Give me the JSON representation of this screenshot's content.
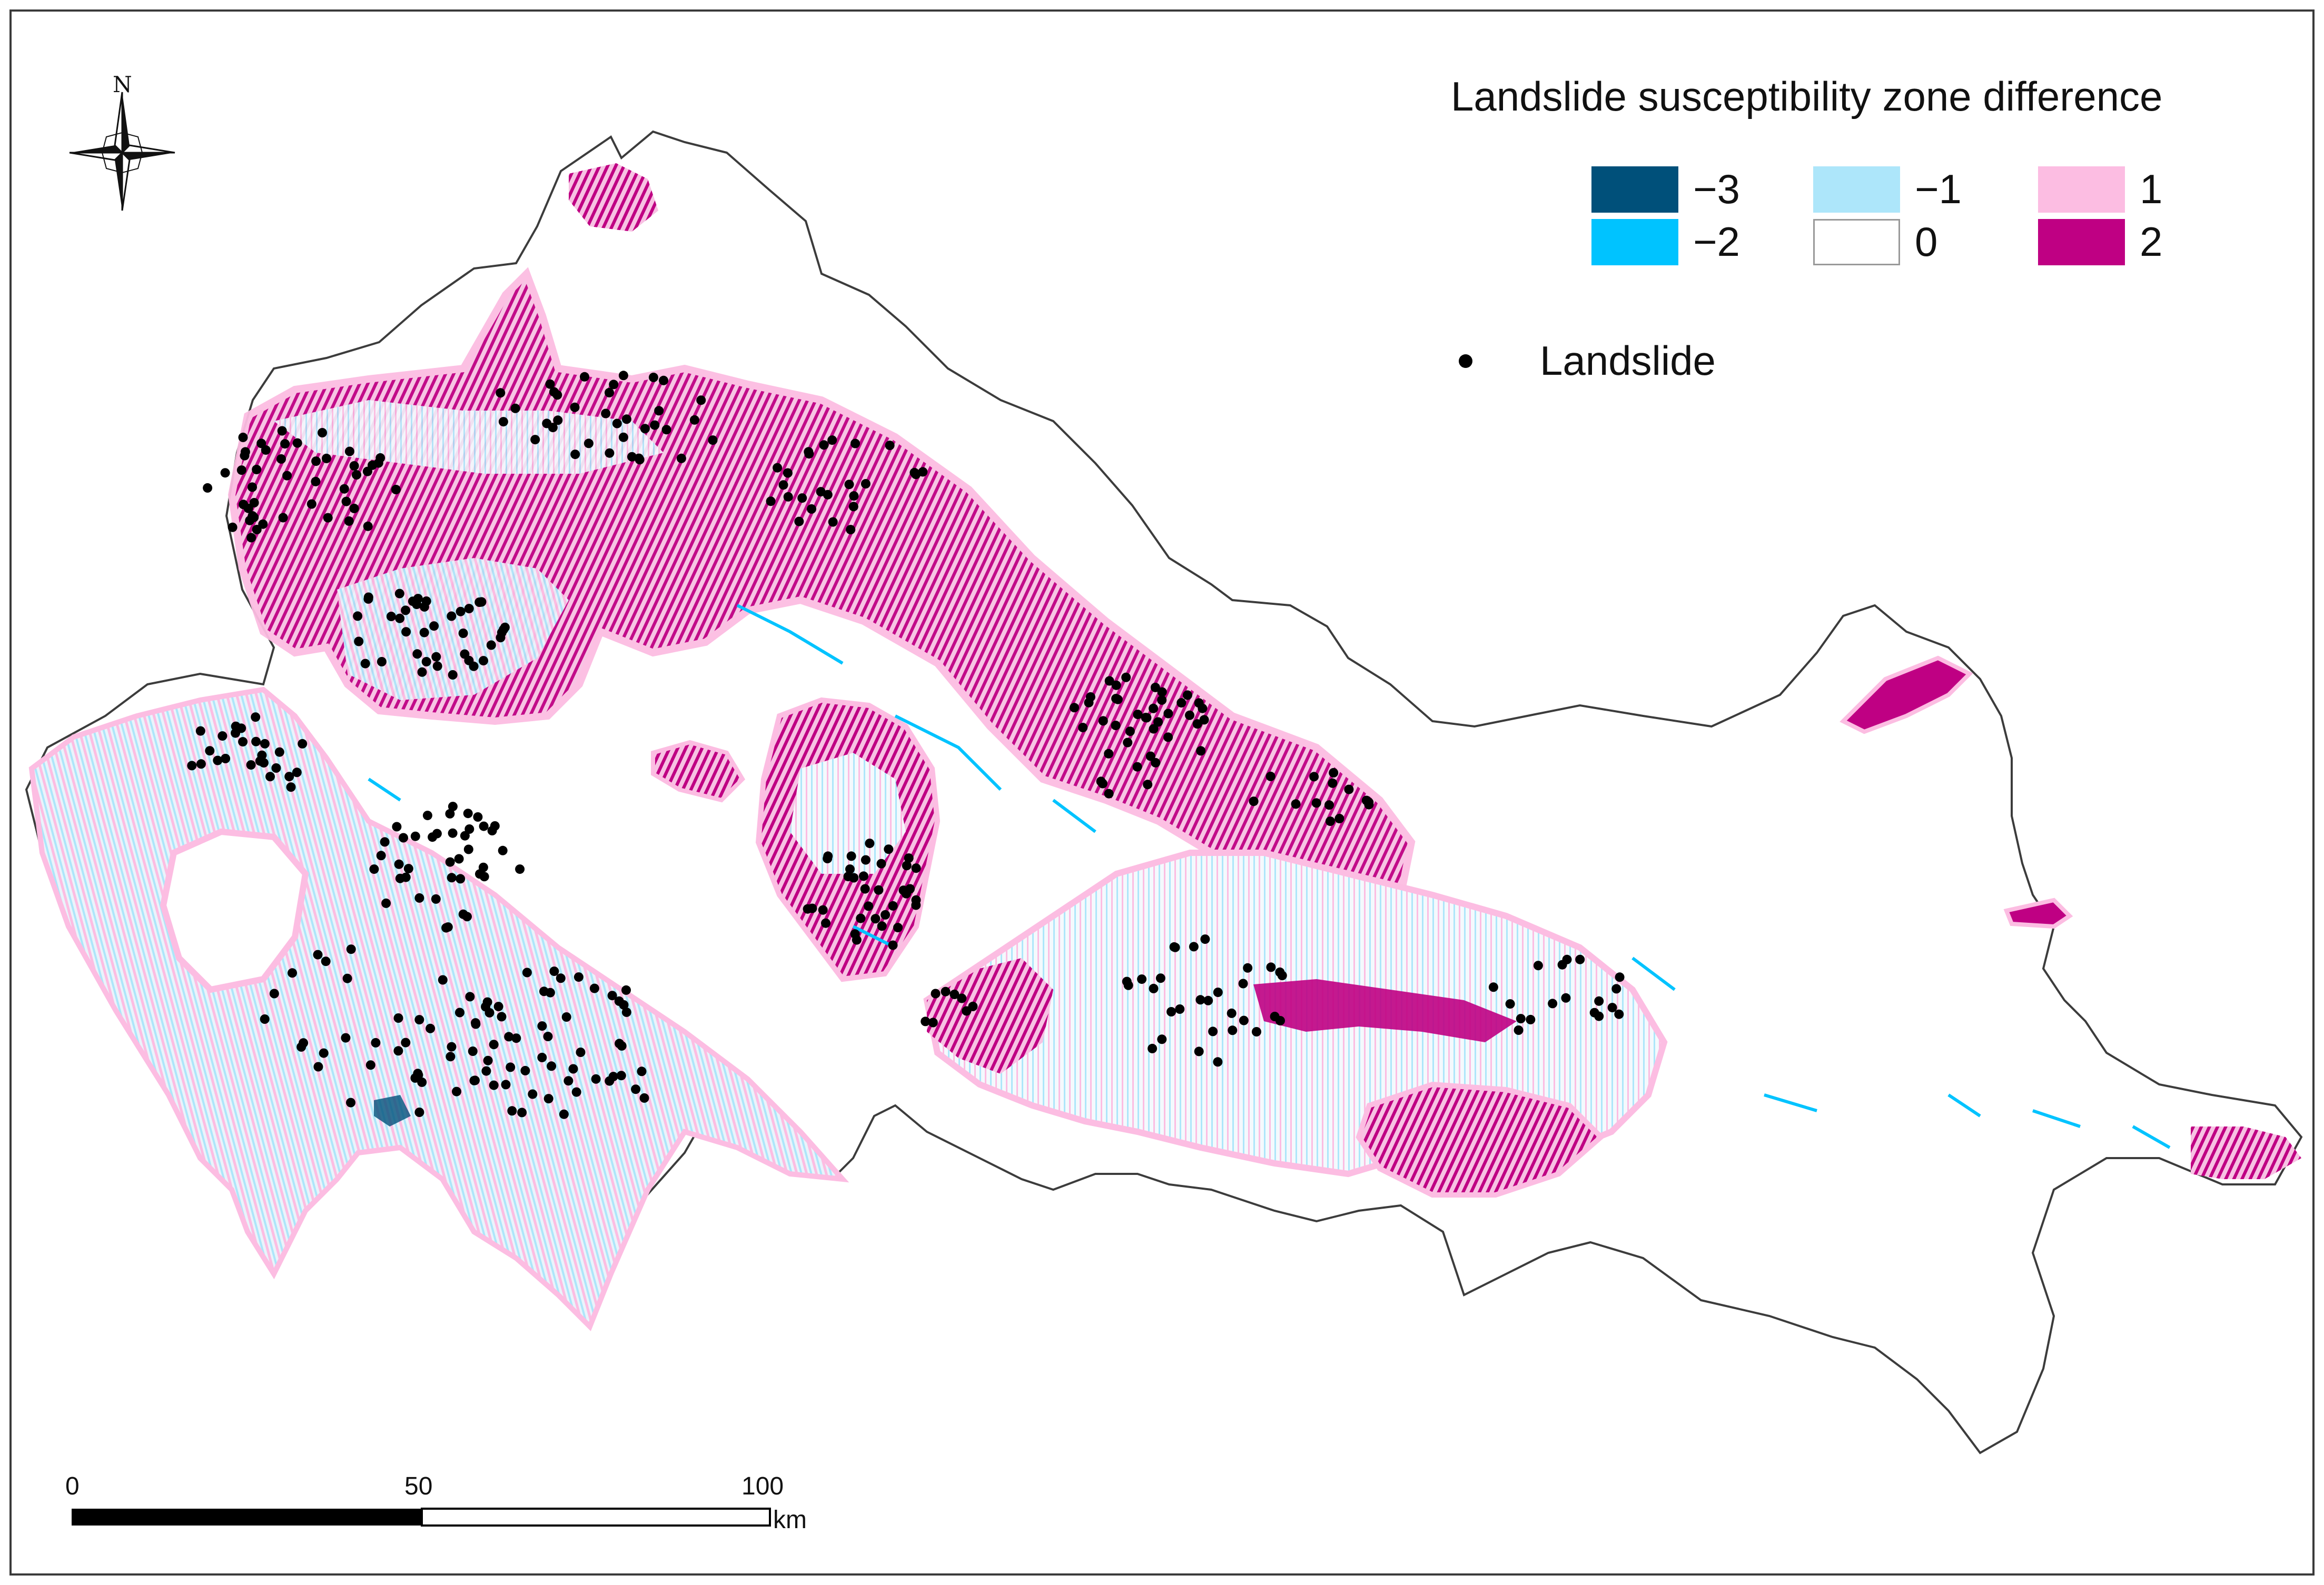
{
  "legend": {
    "title": "Landslide susceptibility zone difference",
    "items": [
      {
        "value": "−3",
        "color": "#00507a"
      },
      {
        "value": "−1",
        "color": "#ade6fa"
      },
      {
        "value": "1",
        "color": "#fcbde2"
      },
      {
        "value": "−2",
        "color": "#00c3ff"
      },
      {
        "value": "0",
        "color": "#ffffff"
      },
      {
        "value": "2",
        "color": "#bf0083"
      }
    ],
    "landslide_label": "Landslide",
    "landslide_color": "#000000"
  },
  "north_arrow": {
    "letter": "N",
    "icon": "compass-rose-icon"
  },
  "scale_bar": {
    "labels": [
      "0",
      "50",
      "100"
    ],
    "unit": "km"
  },
  "map": {
    "boundary_color": "#3c3c3c",
    "background_color": "#ffffff"
  }
}
